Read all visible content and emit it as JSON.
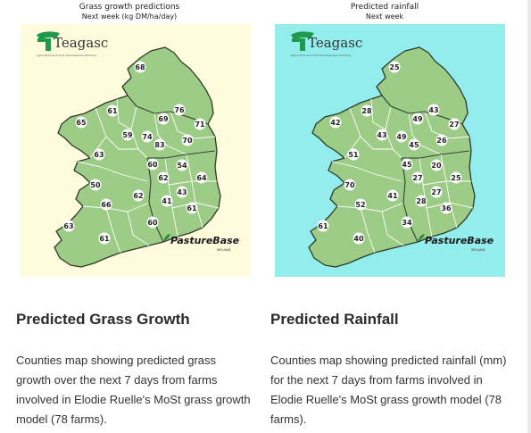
{
  "grass_map": {
    "title": "Grass growth predictions",
    "subtitle": "Next week (kg DM/ha/day)",
    "background": "#fffcdd",
    "land_color": "#9ccc86",
    "logo_text": "Teagasc",
    "logo_tagline": "Agriculture and Food Development Authority",
    "brand_text": "PastureBase",
    "brand_sub": "IRELAND",
    "values": [
      "68",
      "61",
      "76",
      "69",
      "71",
      "65",
      "59",
      "74",
      "83",
      "70",
      "63",
      "60",
      "54",
      "62",
      "64",
      "50",
      "62",
      "43",
      "66",
      "41",
      "61",
      "60",
      "63",
      "61"
    ]
  },
  "rain_map": {
    "title": "Predicted rainfall",
    "subtitle": "Next week",
    "background": "#93eded",
    "land_color": "#9ccc86",
    "logo_text": "Teagasc",
    "logo_tagline": "Agriculture and Food Development Authority",
    "brand_text": "PastureBase",
    "brand_sub": "IRELAND",
    "values": [
      "25",
      "28",
      "43",
      "49",
      "27",
      "42",
      "43",
      "49",
      "45",
      "26",
      "51",
      "45",
      "20",
      "27",
      "25",
      "70",
      "41",
      "27",
      "52",
      "28",
      "36",
      "34",
      "61",
      "40"
    ]
  },
  "grass_card": {
    "heading": "Predicted Grass Growth",
    "description": "Counties map showing predicted grass growth over the next 7 days from farms involved in Elodie Ruelle's MoSt grass growth model (78 farms)."
  },
  "rain_card": {
    "heading": "Predicted Rainfall",
    "description": "Counties map showing predicted rainfall (mm) for the next 7 days from farms involved in Elodie Ruelle's MoSt grass growth model (78 farms)."
  }
}
